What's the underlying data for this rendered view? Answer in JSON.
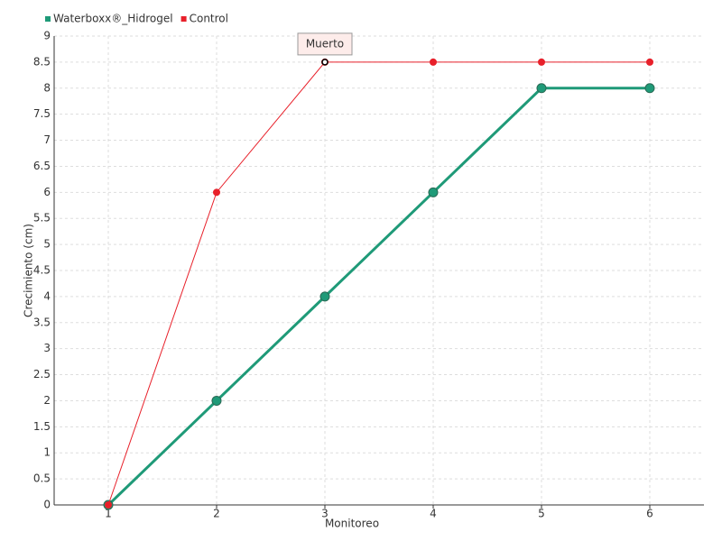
{
  "chart_data": {
    "type": "line",
    "x": [
      1,
      2,
      3,
      4,
      5,
      6
    ],
    "xlim": [
      0.5,
      6.5
    ],
    "xticks": [
      1,
      2,
      3,
      4,
      5,
      6
    ],
    "ylim": [
      0,
      9
    ],
    "yticks": [
      0,
      0.5,
      1,
      1.5,
      2,
      2.5,
      3,
      3.5,
      4,
      4.5,
      5,
      5.5,
      6,
      6.5,
      7,
      7.5,
      8,
      8.5,
      9
    ],
    "x_label": "Monitoreo",
    "y_label": "Crecimiento (cm)",
    "grid": true,
    "legend": "top-left",
    "series": [
      {
        "name": "Waterboxx®_Hidrogel",
        "color": "#1f9a78",
        "values": [
          0,
          2,
          4,
          6,
          8,
          8
        ]
      },
      {
        "name": "Control",
        "color": "#e8202a",
        "values": [
          0,
          6,
          8.5,
          8.5,
          8.5,
          8.5
        ]
      }
    ],
    "annotations": [
      {
        "text": "Muerto",
        "x": 3,
        "y": 8.5
      }
    ]
  }
}
